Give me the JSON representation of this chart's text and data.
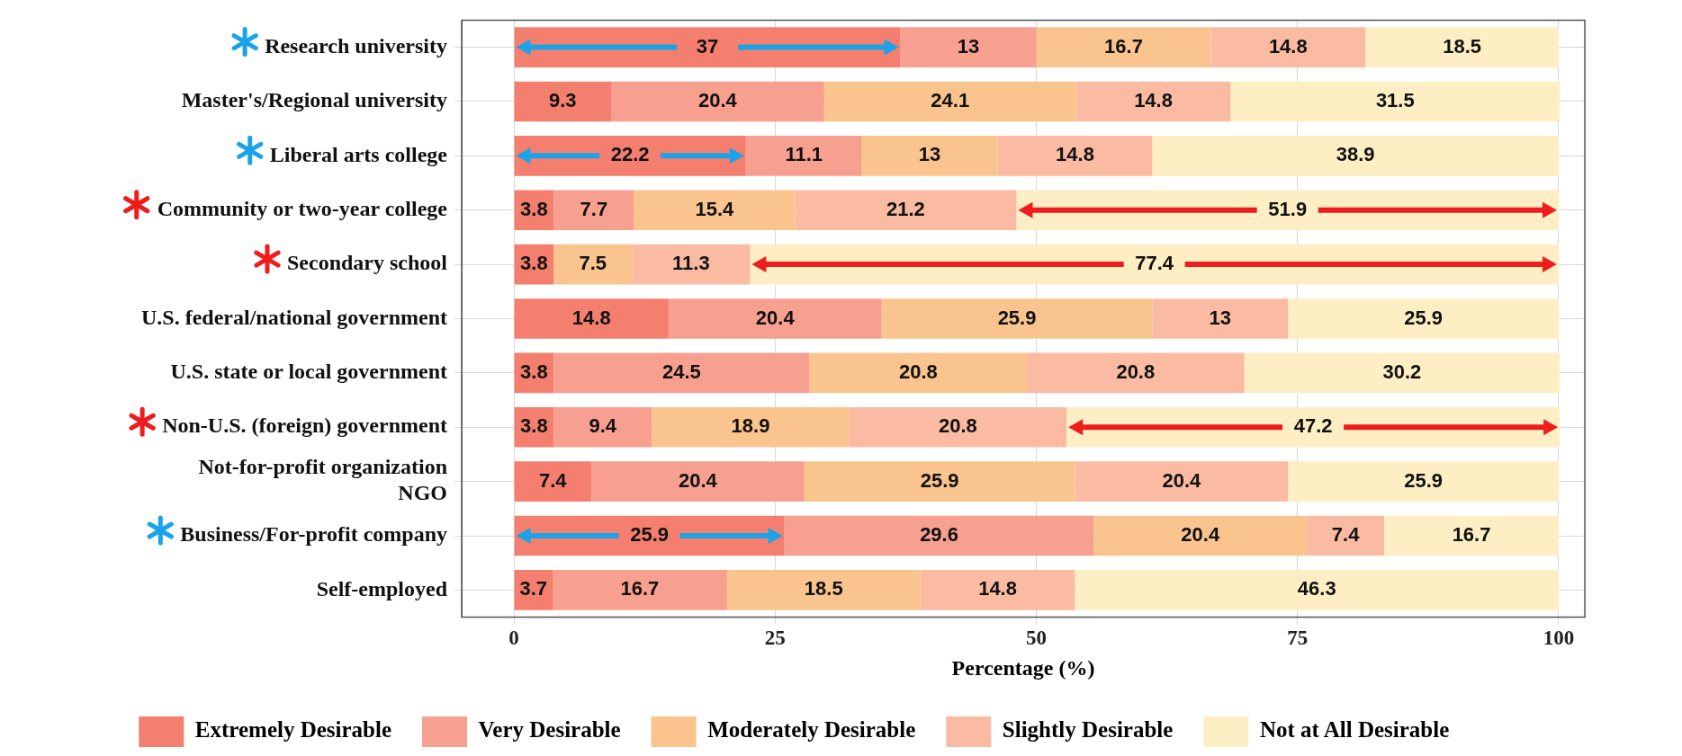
{
  "chart_data": {
    "type": "bar",
    "orientation": "horizontal",
    "stacked": true,
    "xlabel": "Percentage (%)",
    "categories": [
      "Research university",
      "Master's/Regional university",
      "Liberal arts college",
      "Community or two-year college",
      "Secondary school",
      "U.S. federal/national government",
      "U.S. state or local government",
      "Non-U.S. (foreign) government",
      "Not-for-profit organization\nNGO",
      "Business/For-profit company",
      "Self-employed"
    ],
    "series": [
      {
        "name": "Extremely Desirable",
        "color": "#f47f6e",
        "values": [
          37,
          9.3,
          22.2,
          3.8,
          3.8,
          14.8,
          3.8,
          3.8,
          7.4,
          25.9,
          3.7
        ]
      },
      {
        "name": "Very Desirable",
        "color": "#f8a090",
        "values": [
          13,
          20.4,
          11.1,
          7.7,
          null,
          20.4,
          24.5,
          9.4,
          20.4,
          29.6,
          16.7
        ]
      },
      {
        "name": "Moderately Desirable",
        "color": "#f9c48d",
        "values": [
          16.7,
          24.1,
          13,
          15.4,
          7.5,
          25.9,
          20.8,
          18.9,
          25.9,
          20.4,
          18.5
        ]
      },
      {
        "name": "Slightly Desirable",
        "color": "#fbbba2",
        "values": [
          14.8,
          14.8,
          14.8,
          21.2,
          11.3,
          13,
          20.8,
          20.8,
          20.4,
          7.4,
          14.8
        ]
      },
      {
        "name": "Not at All Desirable",
        "color": "#fdefc3",
        "values": [
          18.5,
          31.5,
          38.9,
          51.9,
          77.4,
          25.9,
          30.2,
          47.2,
          25.9,
          16.7,
          46.3
        ]
      }
    ],
    "xlim": [
      -5,
      102.5
    ],
    "xticks": [
      0,
      25,
      50,
      75,
      100
    ],
    "grid": true,
    "legend": "bottom",
    "data_labels": true
  }
}
